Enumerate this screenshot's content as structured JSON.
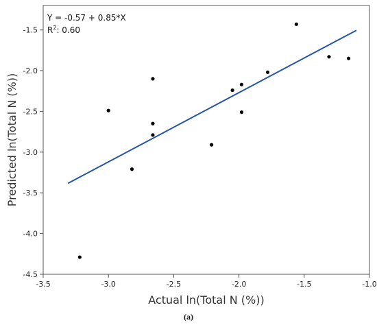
{
  "chart_data": {
    "type": "scatter",
    "xlabel": "Actual ln(Total N (%))",
    "ylabel": "Predicted ln(Total N (%))",
    "xlim": [
      -3.5,
      -1.0
    ],
    "ylim": [
      -4.5,
      -1.2
    ],
    "x_ticks": [
      "-3.5",
      "-3.0",
      "-2.5",
      "-2.0",
      "-1.5",
      "-1.0"
    ],
    "x_tick_values": [
      -3.5,
      -3.0,
      -2.5,
      -2.0,
      -1.5,
      -1.0
    ],
    "y_ticks": [
      "-4.5",
      "-4.0",
      "-3.5",
      "-3.0",
      "-2.5",
      "-2.0",
      "-1.5"
    ],
    "y_tick_values": [
      -4.5,
      -4.0,
      -3.5,
      -3.0,
      -2.5,
      -2.0,
      -1.5
    ],
    "points": [
      {
        "x": -3.22,
        "y": -4.29
      },
      {
        "x": -3.0,
        "y": -2.49
      },
      {
        "x": -2.82,
        "y": -3.21
      },
      {
        "x": -2.66,
        "y": -2.1
      },
      {
        "x": -2.66,
        "y": -2.65
      },
      {
        "x": -2.66,
        "y": -2.79
      },
      {
        "x": -2.21,
        "y": -2.91
      },
      {
        "x": -2.05,
        "y": -2.24
      },
      {
        "x": -1.98,
        "y": -2.17
      },
      {
        "x": -1.98,
        "y": -2.51
      },
      {
        "x": -1.78,
        "y": -2.02
      },
      {
        "x": -1.56,
        "y": -1.43
      },
      {
        "x": -1.31,
        "y": -1.83
      },
      {
        "x": -1.16,
        "y": -1.85
      }
    ],
    "fit_line": {
      "intercept": -0.57,
      "slope": 0.85,
      "x_start": -3.31,
      "x_end": -1.1
    },
    "equation": "Y = -0.57 + 0.85*X",
    "r2_prefix": "R",
    "r2_sup": "2",
    "r2_value": ": 0.60",
    "colors": {
      "line": "#2255aa",
      "points": "#000000",
      "axis": "#555555"
    }
  },
  "caption": "(a)"
}
